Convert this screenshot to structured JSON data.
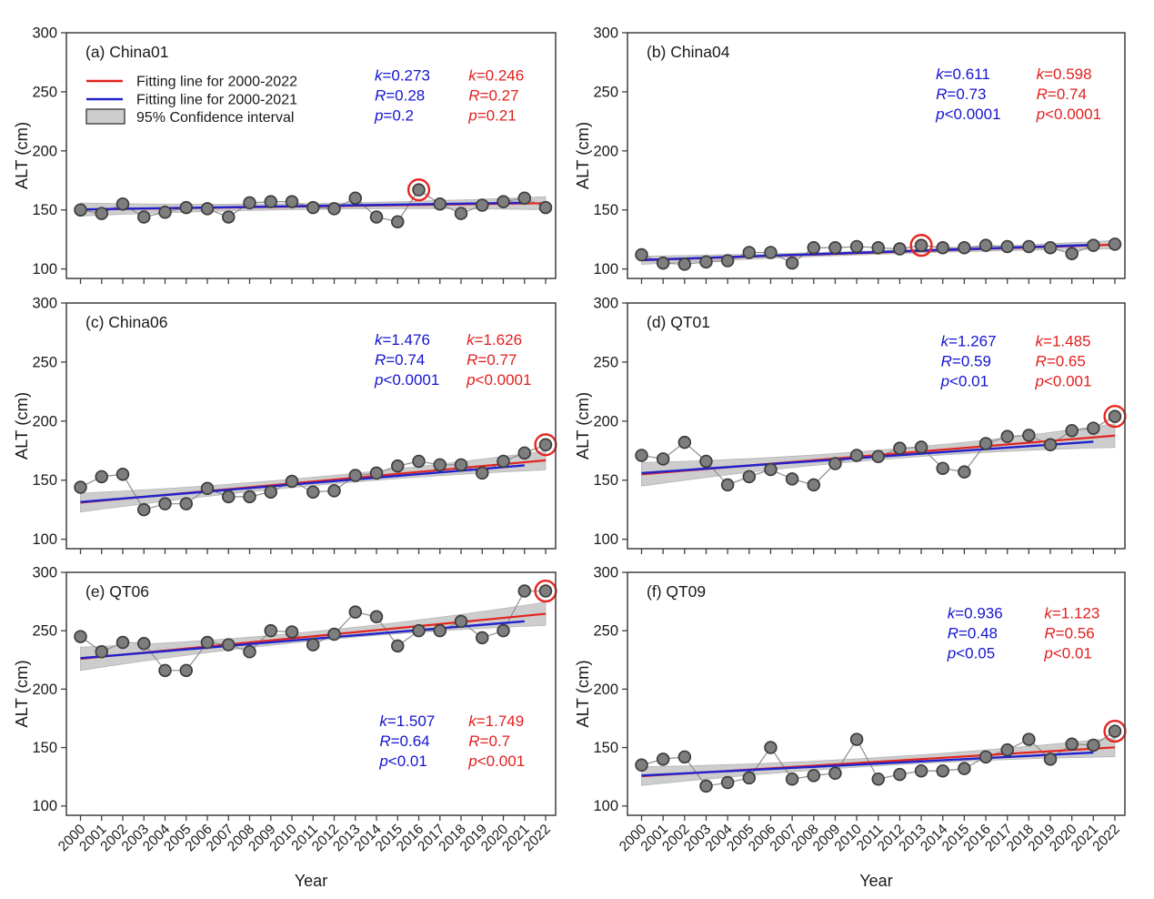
{
  "figure": {
    "y_axis_label": "ALT (cm)",
    "x_axis_label": "Year",
    "y_ticks": [
      300,
      250,
      200,
      150,
      100
    ],
    "colors": {
      "red_line": "#e22520",
      "blue_line": "#2222cc",
      "band_fill": "#cdcdcd",
      "band_edge": "#b5b5b5",
      "point_fill": "#7e7e7e",
      "point_stroke": "#3c3c3c",
      "connector": "#8c8c8c",
      "frame": "#3f3f3f",
      "text": "#1a1a1a",
      "stats_blue": "#1515d0",
      "stats_red": "#e21f1f",
      "highlight_ring": "#e62520"
    },
    "legend": [
      {
        "swatch": "red-line",
        "label": "Fitting line for 2000-2022"
      },
      {
        "swatch": "blue-line",
        "label": "Fitting line for 2000-2021"
      },
      {
        "swatch": "gray-box",
        "label": "95% Confidence interval"
      }
    ]
  },
  "chart_data": {
    "type": "scatter",
    "x_label": "Year",
    "y_label": "ALT (cm)",
    "ylim": [
      92,
      300
    ],
    "x": [
      2000,
      2001,
      2002,
      2003,
      2004,
      2005,
      2006,
      2007,
      2008,
      2009,
      2010,
      2011,
      2012,
      2013,
      2014,
      2015,
      2016,
      2017,
      2018,
      2019,
      2020,
      2021,
      2022
    ],
    "panels": [
      {
        "id": "a",
        "label": "(a) China01",
        "site": "China01",
        "has_legend": true,
        "values": [
          150,
          147,
          155,
          144,
          148,
          152,
          151,
          144,
          156,
          157,
          157,
          152,
          151,
          160,
          144,
          140,
          167,
          155,
          147,
          154,
          157,
          160,
          152
        ],
        "circled_year": 2016,
        "fit_2000_2022": {
          "start": 150.3,
          "end": 155.7
        },
        "fit_2000_2021": {
          "start": 150.4,
          "end": 156.1
        },
        "band_halfwidth": [
          5.5,
          2.5,
          5.5
        ],
        "stats_blue": [
          [
            "k",
            "=0.273"
          ],
          [
            "R",
            "=0.28"
          ],
          [
            "p",
            "=0.2"
          ]
        ],
        "stats_red": [
          [
            "k",
            "=0.246"
          ],
          [
            "R",
            "=0.27"
          ],
          [
            "p",
            "=0.21"
          ]
        ]
      },
      {
        "id": "b",
        "label": "(b) China04",
        "site": "China04",
        "has_legend": false,
        "values": [
          112,
          105,
          104,
          106,
          107,
          114,
          114,
          105,
          118,
          118,
          119,
          118,
          117,
          120,
          118,
          118,
          120,
          119,
          119,
          118,
          113,
          120,
          121
        ],
        "circled_year": 2013,
        "fit_2000_2022": {
          "start": 107.4,
          "end": 120.6
        },
        "fit_2000_2021": {
          "start": 107.6,
          "end": 120.4
        },
        "band_halfwidth": [
          3.5,
          1.5,
          3.5
        ],
        "stats_blue": [
          [
            "k",
            "=0.611"
          ],
          [
            "R",
            "=0.73"
          ],
          [
            "p",
            "<0.0001"
          ]
        ],
        "stats_red": [
          [
            "k",
            "=0.598"
          ],
          [
            "R",
            "=0.74"
          ],
          [
            "p",
            "<0.0001"
          ]
        ]
      },
      {
        "id": "c",
        "label": "(c) China06",
        "site": "China06",
        "has_legend": false,
        "values": [
          144,
          153,
          155,
          125,
          130,
          130,
          143,
          136,
          136,
          140,
          149,
          140,
          141,
          154,
          156,
          162,
          166,
          163,
          163,
          156,
          166,
          173,
          180
        ],
        "circled_year": 2022,
        "fit_2000_2022": {
          "start": 131.0,
          "end": 166.8
        },
        "fit_2000_2021": {
          "start": 131.5,
          "end": 162.5
        },
        "band_halfwidth": [
          8,
          3.5,
          8
        ],
        "stats_blue": [
          [
            "k",
            "=1.476"
          ],
          [
            "R",
            "=0.74"
          ],
          [
            "p",
            "<0.0001"
          ]
        ],
        "stats_red": [
          [
            "k",
            "=1.626"
          ],
          [
            "R",
            "=0.77"
          ],
          [
            "p",
            "<0.0001"
          ]
        ]
      },
      {
        "id": "d",
        "label": "(d) QT01",
        "site": "QT01",
        "has_legend": false,
        "values": [
          171,
          168,
          182,
          166,
          146,
          153,
          159,
          151,
          146,
          164,
          171,
          170,
          177,
          178,
          160,
          157,
          181,
          187,
          188,
          180,
          192,
          194,
          204
        ],
        "circled_year": 2022,
        "fit_2000_2022": {
          "start": 155.0,
          "end": 187.7
        },
        "fit_2000_2021": {
          "start": 156.0,
          "end": 182.6
        },
        "band_halfwidth": [
          10,
          4,
          10
        ],
        "stats_blue": [
          [
            "k",
            "=1.267"
          ],
          [
            "R",
            "=0.59"
          ],
          [
            "p",
            "<0.01"
          ]
        ],
        "stats_red": [
          [
            "k",
            "=1.485"
          ],
          [
            "R",
            "=0.65"
          ],
          [
            "p",
            "<0.001"
          ]
        ]
      },
      {
        "id": "e",
        "label": "(e) QT06",
        "site": "QT06",
        "has_legend": false,
        "values": [
          245,
          232,
          240,
          239,
          216,
          216,
          240,
          238,
          232,
          250,
          249,
          238,
          247,
          266,
          262,
          237,
          250,
          250,
          258,
          244,
          250,
          284,
          284
        ],
        "circled_year": 2022,
        "fit_2000_2022": {
          "start": 226.0,
          "end": 264.5
        },
        "fit_2000_2021": {
          "start": 226.5,
          "end": 258.1
        },
        "band_halfwidth": [
          10,
          4,
          10
        ],
        "stats_blue": [
          [
            "k",
            "=1.507"
          ],
          [
            "R",
            "=0.64"
          ],
          [
            "p",
            "<0.01"
          ]
        ],
        "stats_red": [
          [
            "k",
            "=1.749"
          ],
          [
            "R",
            "=0.7"
          ],
          [
            "p",
            "<0.001"
          ]
        ]
      },
      {
        "id": "f",
        "label": "(f) QT09",
        "site": "QT09",
        "has_legend": false,
        "values": [
          135,
          140,
          142,
          117,
          120,
          124,
          150,
          123,
          126,
          128,
          157,
          123,
          127,
          130,
          130,
          132,
          142,
          148,
          157,
          140,
          153,
          152,
          164
        ],
        "circled_year": 2022,
        "fit_2000_2022": {
          "start": 125.5,
          "end": 150.2
        },
        "fit_2000_2021": {
          "start": 126.0,
          "end": 145.7
        },
        "band_halfwidth": [
          8,
          3.5,
          8
        ],
        "stats_blue": [
          [
            "k",
            "=0.936"
          ],
          [
            "R",
            "=0.48"
          ],
          [
            "p",
            "<0.05"
          ]
        ],
        "stats_red": [
          [
            "k",
            "=1.123"
          ],
          [
            "R",
            "=0.56"
          ],
          [
            "p",
            "<0.01"
          ]
        ]
      }
    ]
  }
}
